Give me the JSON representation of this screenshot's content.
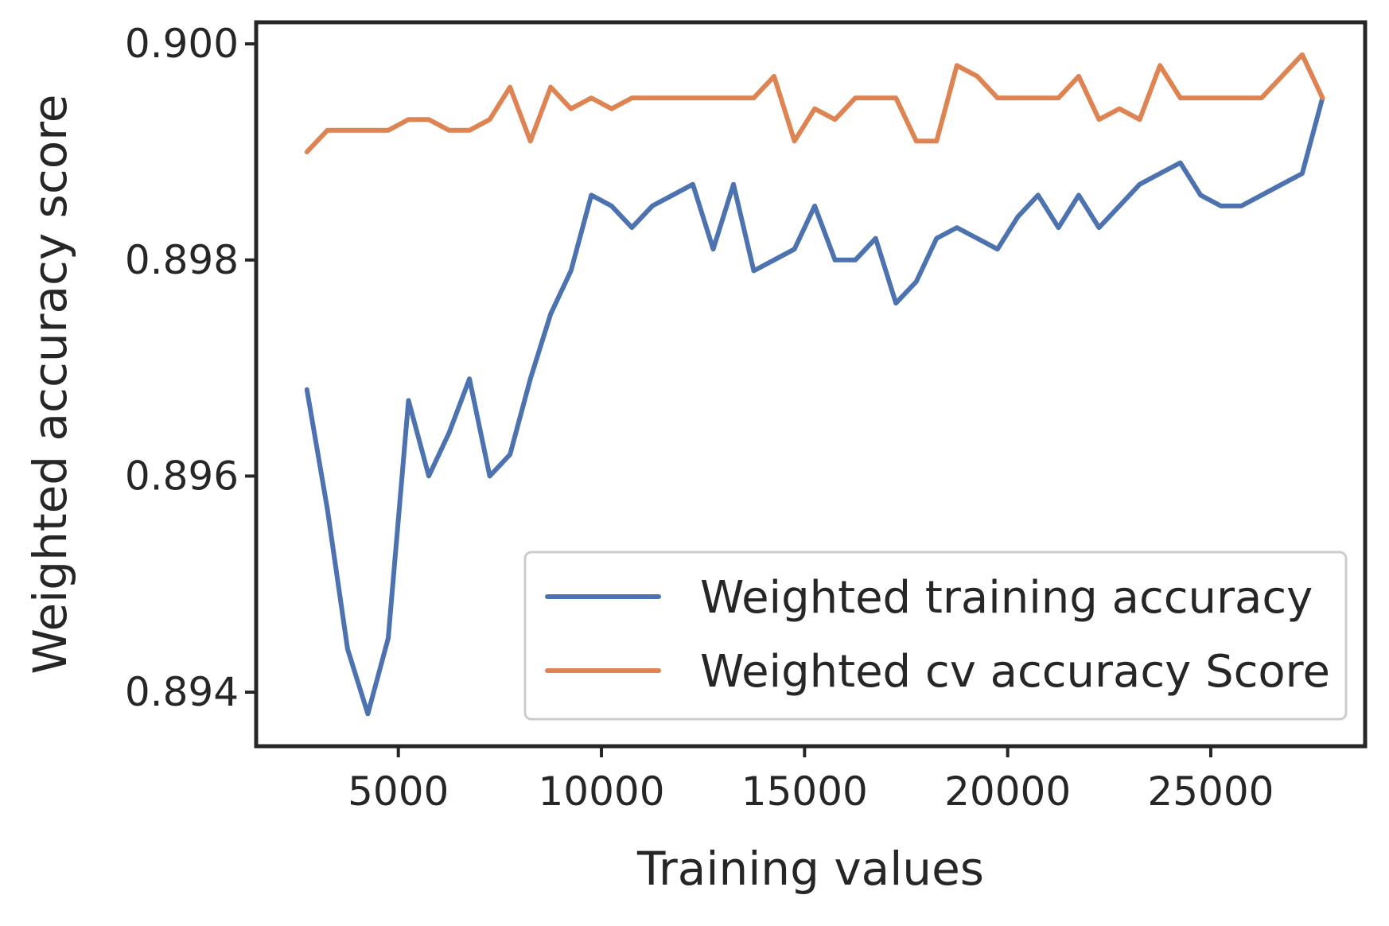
{
  "chart_data": {
    "type": "line",
    "title": "",
    "xlabel": "Training values",
    "ylabel": "Weighted accuracy score",
    "xlim": [
      1500,
      28800
    ],
    "ylim": [
      0.8935,
      0.9002
    ],
    "xticks": [
      5000,
      10000,
      15000,
      20000,
      25000
    ],
    "xtick_labels": [
      "5000",
      "10000",
      "15000",
      "20000",
      "25000"
    ],
    "yticks": [
      0.894,
      0.896,
      0.898,
      0.9
    ],
    "ytick_labels": [
      "0.894",
      "0.896",
      "0.898",
      "0.900"
    ],
    "grid": false,
    "legend_position": "lower-right",
    "x": [
      2750,
      3250,
      3750,
      4250,
      4750,
      5250,
      5750,
      6250,
      6750,
      7250,
      7750,
      8250,
      8750,
      9250,
      9750,
      10250,
      10750,
      11250,
      11750,
      12250,
      12750,
      13250,
      13750,
      14250,
      14750,
      15250,
      15750,
      16250,
      16750,
      17250,
      17750,
      18250,
      18750,
      19250,
      19750,
      20250,
      20750,
      21250,
      21750,
      22250,
      22750,
      23250,
      23750,
      24250,
      24750,
      25250,
      25750,
      26250,
      26750,
      27250,
      27750
    ],
    "series": [
      {
        "name": "Weighted training accuracy",
        "color": "#4c72b0",
        "values": [
          0.8968,
          0.8957,
          0.8944,
          0.8938,
          0.8945,
          0.8967,
          0.896,
          0.8964,
          0.8969,
          0.896,
          0.8962,
          0.8969,
          0.8975,
          0.8979,
          0.8986,
          0.8985,
          0.8983,
          0.8985,
          0.8986,
          0.8987,
          0.8981,
          0.8987,
          0.8979,
          0.898,
          0.8981,
          0.8985,
          0.898,
          0.898,
          0.8982,
          0.8976,
          0.8978,
          0.8982,
          0.8983,
          0.8982,
          0.8981,
          0.8984,
          0.8986,
          0.8983,
          0.8986,
          0.8983,
          0.8985,
          0.8987,
          0.8988,
          0.8989,
          0.8986,
          0.8985,
          0.8985,
          0.8986,
          0.8987,
          0.8988,
          0.8995
        ]
      },
      {
        "name": "Weighted cv accuracy Score",
        "color": "#dd8452",
        "values": [
          0.899,
          0.8992,
          0.8992,
          0.8992,
          0.8992,
          0.8993,
          0.8993,
          0.8992,
          0.8992,
          0.8993,
          0.8996,
          0.8991,
          0.8996,
          0.8994,
          0.8995,
          0.8994,
          0.8995,
          0.8995,
          0.8995,
          0.8995,
          0.8995,
          0.8995,
          0.8995,
          0.8997,
          0.8991,
          0.8994,
          0.8993,
          0.8995,
          0.8995,
          0.8995,
          0.8991,
          0.8991,
          0.8998,
          0.8997,
          0.8995,
          0.8995,
          0.8995,
          0.8995,
          0.8997,
          0.8993,
          0.8994,
          0.8993,
          0.8998,
          0.8995,
          0.8995,
          0.8995,
          0.8995,
          0.8995,
          0.8997,
          0.8999,
          0.8995
        ]
      }
    ]
  }
}
